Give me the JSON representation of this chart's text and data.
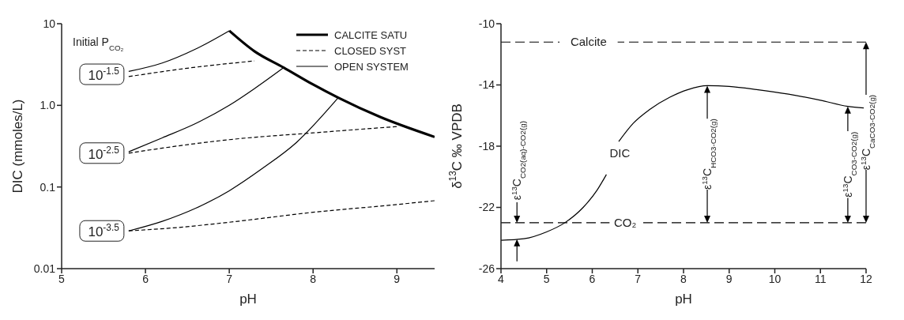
{
  "chart_data": [
    {
      "type": "line",
      "xlabel": "pH",
      "ylabel": "DIC  (mmoles/L)",
      "log": "y",
      "xlim": [
        5,
        9.45
      ],
      "xticks": [
        5,
        6,
        7,
        8,
        9
      ],
      "ylim": [
        0.01,
        10
      ],
      "yticks": [
        0.01,
        0.1,
        {
          "value": 1,
          "label": "1.0"
        },
        10
      ],
      "legend": "top right",
      "annotations": [
        "Initial P$_{CO₂}$",
        {
          "text": "10$^{-1.5}$",
          "x": 5.8,
          "y": 2.4
        },
        {
          "text": "10$^{-2.5}$",
          "x": 5.8,
          "y": 0.26
        },
        {
          "text": "10$^{-3.5}$",
          "x": 5.8,
          "y": 0.029
        }
      ],
      "series": [
        {
          "name": "CALCITE SATU",
          "color": "#000000",
          "line_style": "solid",
          "x": [
            7.0,
            7.3,
            7.65,
            8.0,
            8.3,
            8.8,
            9.45
          ],
          "values": [
            8.2,
            4.6,
            2.9,
            1.8,
            1.24,
            0.72,
            0.41
          ]
        },
        {
          "name": "CLOSED SYST",
          "color": "#000000",
          "line_style": "dashed",
          "x": [
            5.8,
            6.5,
            7.3
          ],
          "values": [
            2.25,
            2.85,
            3.5
          ]
        },
        {
          "name": "OPEN SYSTEM",
          "color": "#000000",
          "line_style": "solid",
          "x": [
            5.8,
            6.2,
            6.6,
            7.0
          ],
          "values": [
            2.6,
            3.3,
            4.9,
            8.2
          ]
        },
        {
          "color": "#000000",
          "line_style": "dashed",
          "x": [
            5.8,
            6.5,
            7.0,
            8.0,
            9.0
          ],
          "values": [
            0.26,
            0.33,
            0.38,
            0.46,
            0.55
          ]
        },
        {
          "color": "#000000",
          "line_style": "solid",
          "x": [
            5.8,
            6.2,
            6.6,
            7.0,
            7.3,
            7.65
          ],
          "values": [
            0.27,
            0.4,
            0.6,
            1.0,
            1.6,
            2.9
          ]
        },
        {
          "color": "#000000",
          "line_style": "dashed",
          "x": [
            5.8,
            6.4,
            7.0,
            8.0,
            9.0,
            9.45
          ],
          "values": [
            0.029,
            0.032,
            0.037,
            0.049,
            0.061,
            0.068
          ]
        },
        {
          "color": "#000000",
          "line_style": "solid",
          "x": [
            5.8,
            6.2,
            6.6,
            7.0,
            7.4,
            7.8,
            8.3
          ],
          "values": [
            0.029,
            0.038,
            0.055,
            0.09,
            0.17,
            0.35,
            1.24
          ]
        }
      ]
    },
    {
      "type": "line",
      "xlabel": "pH",
      "ylabel": "δ$^{13}$C ‰ VPDB",
      "xlim": [
        4,
        12
      ],
      "xticks": [
        4,
        5,
        6,
        7,
        8,
        9,
        10,
        11,
        12
      ],
      "ylim": [
        -26,
        -10
      ],
      "yticks": [
        -10,
        -14,
        -18,
        -22,
        -26
      ],
      "ref_lines": [
        {
          "axis": "y",
          "value": -11.2,
          "label": "Calcite",
          "line_style": "dashed"
        },
        {
          "axis": "y",
          "value": -23,
          "label": "CO₂",
          "line_style": "dashed"
        }
      ],
      "annotations": [
        {
          "text": "ε$^{13}$C$_{CO2(aq)-CO2(g)}$",
          "x": 4.35,
          "y": -23
        },
        {
          "text": "ε$^{13}$C$_{HCO3-CO2(g)}$",
          "x": 8.52,
          "y": -14.05
        },
        {
          "text": "ε$^{13}$C$_{CO3-CO2(g)}$",
          "x": 11.6,
          "y": -15.4
        },
        {
          "text": "ε$^{13}$C$_{CaCO3-CO2(g)}$",
          "x": 12,
          "y": -11.2
        }
      ],
      "series": [
        {
          "name": "DIC",
          "color": "#000000",
          "line_style": "solid",
          "x": [
            4.0,
            4.5,
            5.0,
            5.4,
            5.8,
            6.1,
            6.31,
            6.45,
            6.58,
            6.9,
            7.26,
            7.7,
            8.1,
            8.52,
            9.0,
            9.6,
            10.3,
            11.0,
            11.6,
            11.95
          ],
          "values": [
            -24.15,
            -24.05,
            -23.6,
            -23.0,
            -22.0,
            -20.9,
            -19.85,
            null,
            -17.7,
            -16.5,
            -15.6,
            -14.8,
            -14.3,
            -14.05,
            -14.1,
            -14.3,
            -14.6,
            -15.0,
            -15.4,
            -15.5
          ]
        }
      ]
    }
  ]
}
